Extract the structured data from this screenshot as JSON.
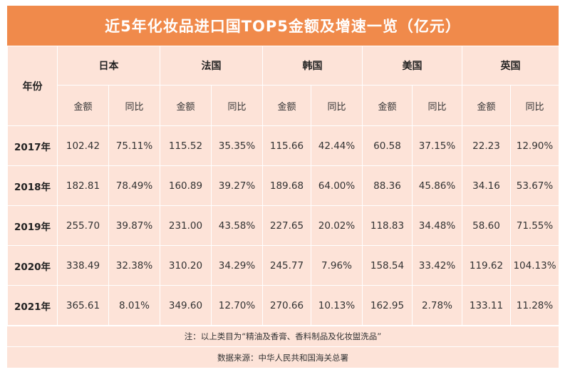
{
  "title": "近5年化妆品进口国TOP5金额及增速一览（亿元）",
  "year_header": "年份",
  "countries": [
    "日本",
    "法国",
    "韩国",
    "美国",
    "英国"
  ],
  "sub_headers": {
    "amount": "金额",
    "yoy": "同比"
  },
  "rows": [
    {
      "year": "2017年",
      "values": [
        "102.42",
        "75.11%",
        "115.52",
        "35.35%",
        "115.66",
        "42.44%",
        "60.58",
        "37.15%",
        "22.23",
        "12.90%"
      ]
    },
    {
      "year": "2018年",
      "values": [
        "182.81",
        "78.49%",
        "160.89",
        "39.27%",
        "189.68",
        "64.00%",
        "88.36",
        "45.86%",
        "34.16",
        "53.67%"
      ]
    },
    {
      "year": "2019年",
      "values": [
        "255.70",
        "39.87%",
        "231.00",
        "43.58%",
        "227.65",
        "20.02%",
        "118.83",
        "34.48%",
        "58.60",
        "71.55%"
      ]
    },
    {
      "year": "2020年",
      "values": [
        "338.49",
        "32.38%",
        "310.20",
        "34.29%",
        "245.77",
        "7.96%",
        "158.54",
        "33.42%",
        "119.62",
        "104.13%"
      ]
    },
    {
      "year": "2021年",
      "values": [
        "365.61",
        "8.01%",
        "349.60",
        "12.70%",
        "270.66",
        "10.13%",
        "162.95",
        "2.78%",
        "133.11",
        "11.28%"
      ]
    }
  ],
  "note": "注：以上类目为“精油及香膏、香料制品及化妆盥洗品”",
  "source": "数据来源：中华人民共和国海关总署"
}
